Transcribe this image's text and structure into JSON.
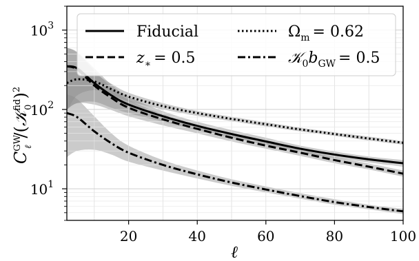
{
  "chart_data": {
    "type": "line",
    "xlabel": "ℓ",
    "ylabel": "C_ℓ^GW/(𝒦₀^fid)²",
    "xlim": [
      2,
      100
    ],
    "ylim": [
      4,
      2000
    ],
    "yscale": "log",
    "grid": true,
    "legend_position": "top",
    "x_ticks": [
      {
        "value": 20,
        "label": "20"
      },
      {
        "value": 40,
        "label": "40"
      },
      {
        "value": 60,
        "label": "60"
      },
      {
        "value": 80,
        "label": "80"
      },
      {
        "value": 100,
        "label": "100"
      }
    ],
    "y_ticks": [
      {
        "value": 10,
        "base": "10",
        "exp": "1"
      },
      {
        "value": 100,
        "base": "10",
        "exp": "2"
      },
      {
        "value": 1000,
        "base": "10",
        "exp": "3"
      }
    ],
    "x": [
      2,
      5,
      10,
      15,
      20,
      30,
      40,
      50,
      60,
      70,
      80,
      90,
      100
    ],
    "series": [
      {
        "name": "Fiducial",
        "dash": "solid",
        "values": [
          350,
          330,
          215,
          150,
          115,
          82,
          62,
          49,
          39.5,
          32,
          27,
          23.5,
          21
        ],
        "band_low": [
          100,
          120,
          125,
          105,
          90,
          70,
          55,
          44,
          36,
          29,
          24.5,
          21.5,
          19
        ],
        "band_high": [
          600,
          530,
          330,
          205,
          145,
          95,
          70,
          55,
          44,
          35,
          29.5,
          25.5,
          23
        ]
      },
      {
        "name": "z_* = 0.5",
        "dash": "dashed",
        "values": [
          350,
          320,
          200,
          140,
          105,
          75,
          57,
          44,
          35,
          28.5,
          23,
          19,
          15.5
        ],
        "band_low": [
          100,
          120,
          115,
          98,
          82,
          63,
          50,
          39.5,
          32,
          26,
          21,
          17.5,
          14.2
        ],
        "band_high": [
          600,
          520,
          310,
          190,
          132,
          87,
          64,
          49,
          39,
          31,
          25,
          20.8,
          17
        ]
      },
      {
        "name": "Ω_m = 0.62",
        "dash": "dotted",
        "values": [
          215,
          240,
          225,
          180,
          145,
          110,
          90,
          76,
          65,
          56,
          49,
          43,
          38
        ],
        "band_low": [
          95,
          150,
          175,
          152,
          127,
          100,
          83,
          71,
          61,
          53,
          46.5,
          40.5,
          36
        ],
        "band_high": [
          340,
          330,
          280,
          210,
          162,
          120,
          96,
          81,
          69,
          59,
          51.5,
          45.5,
          40
        ]
      },
      {
        "name": "𝒦₀ b_GW = 0.5",
        "dash": "dashdot",
        "values": [
          90,
          80,
          53,
          37.5,
          28.5,
          20,
          15.2,
          12,
          9.8,
          8.1,
          6.8,
          5.9,
          5.2
        ],
        "band_low": [
          25,
          30,
          31,
          27,
          22,
          17,
          13.5,
          10.9,
          9,
          7.5,
          6.3,
          5.5,
          4.8
        ],
        "band_high": [
          155,
          135,
          82,
          50,
          35,
          23,
          17,
          13.2,
          10.7,
          8.8,
          7.4,
          6.3,
          5.6
        ]
      }
    ],
    "legend": {
      "fiducial": "Fiducial",
      "zstar_sym": "z",
      "zstar_sub": "∗",
      "zstar_val": "= 0.5",
      "omega_sym": "Ω",
      "omega_sub": "m",
      "omega_val": "= 0.62",
      "kb_sym": "𝒦",
      "kb_sub0": "0",
      "kb_b": "b",
      "kb_sub": "GW",
      "kb_val": "= 0.5"
    }
  }
}
